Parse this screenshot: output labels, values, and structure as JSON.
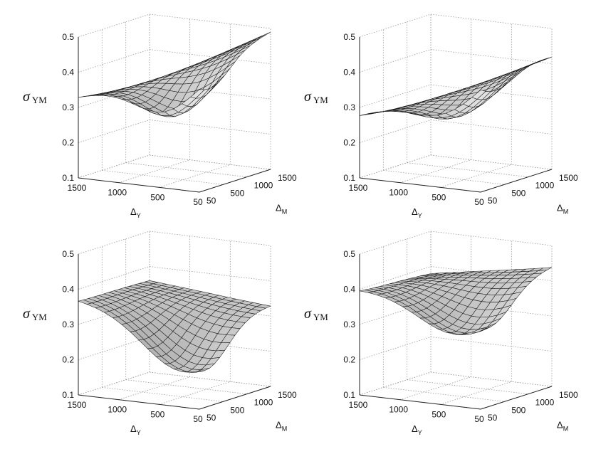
{
  "chart_data": [
    {
      "type": "surface",
      "title": "",
      "zlabel": "σ",
      "zlabel_sub": "YM",
      "xlabel": "Δ",
      "xlabel_sub": "Y",
      "ylabel": "Δ",
      "ylabel_sub": "M",
      "xticks": [
        "1500",
        "1000",
        "500",
        "50"
      ],
      "yticks": [
        "50",
        "500",
        "1000",
        "1500"
      ],
      "zticks": [
        "0.1",
        "0.2",
        "0.3",
        "0.4",
        "0.5"
      ],
      "zlim": [
        0.1,
        0.5
      ],
      "grid": true,
      "fill": "#c4c4c4",
      "edge": "#1a1a1a",
      "surface": {
        "corner_x1500_y50": 0.33,
        "corner_x1500_y1500": 0.3,
        "corner_x50_y50": 0.44,
        "corner_x50_y1500": 0.49,
        "dip_center": 0.17,
        "dip_x": 0.72,
        "dip_y": 0.18,
        "dip_width_x": 0.35,
        "dip_width_y": 0.35,
        "dip_depth": 0.12
      }
    },
    {
      "type": "surface",
      "title": "",
      "zlabel": "σ",
      "zlabel_sub": "YM",
      "xlabel": "Δ",
      "xlabel_sub": "Y",
      "ylabel": "Δ",
      "ylabel_sub": "M",
      "xticks": [
        "1500",
        "1000",
        "500",
        "50"
      ],
      "yticks": [
        "50",
        "500",
        "1000",
        "1500"
      ],
      "zticks": [
        "0.1",
        "0.2",
        "0.3",
        "0.4",
        "0.5"
      ],
      "zlim": [
        0.1,
        0.5
      ],
      "grid": true,
      "fill": "#c4c4c4",
      "edge": "#1a1a1a",
      "surface": {
        "corner_x1500_y50": 0.28,
        "corner_x1500_y1500": 0.25,
        "corner_x50_y50": 0.44,
        "corner_x50_y1500": 0.42,
        "dip_center": 0.14,
        "dip_x": 0.72,
        "dip_y": 0.18,
        "dip_width_x": 0.4,
        "dip_width_y": 0.4,
        "dip_depth": 0.1
      }
    },
    {
      "type": "surface",
      "title": "",
      "zlabel": "σ",
      "zlabel_sub": "YM",
      "xlabel": "Δ",
      "xlabel_sub": "Y",
      "ylabel": "Δ",
      "ylabel_sub": "M",
      "xticks": [
        "1500",
        "1000",
        "500",
        "50"
      ],
      "yticks": [
        "50",
        "500",
        "1000",
        "1500"
      ],
      "zticks": [
        "0.1",
        "0.2",
        "0.3",
        "0.4",
        "0.5"
      ],
      "zlim": [
        0.1,
        0.5
      ],
      "grid": true,
      "fill": "#c4c4c4",
      "edge": "#1a1a1a",
      "surface": {
        "corner_x1500_y50": 0.37,
        "corner_x1500_y1500": 0.36,
        "corner_x50_y50": 0.33,
        "corner_x50_y1500": 0.33,
        "dip_center": 0.11,
        "dip_x": 0.85,
        "dip_y": 0.08,
        "dip_width_x": 0.45,
        "dip_width_y": 0.45,
        "dip_depth": 0.14
      }
    },
    {
      "type": "surface",
      "title": "",
      "zlabel": "σ",
      "zlabel_sub": "YM",
      "xlabel": "Δ",
      "xlabel_sub": "Y",
      "ylabel": "Δ",
      "ylabel_sub": "M",
      "xticks": [
        "1500",
        "1000",
        "500",
        "50"
      ],
      "yticks": [
        "50",
        "500",
        "1000",
        "1500"
      ],
      "zticks": [
        "0.1",
        "0.2",
        "0.3",
        "0.4",
        "0.5"
      ],
      "zlim": [
        0.1,
        0.5
      ],
      "grid": true,
      "fill": "#c4c4c4",
      "edge": "#1a1a1a",
      "surface": {
        "corner_x1500_y50": 0.4,
        "corner_x1500_y1500": 0.38,
        "corner_x50_y50": 0.42,
        "corner_x50_y1500": 0.44,
        "dip_center": 0.14,
        "dip_x": 0.8,
        "dip_y": 0.12,
        "dip_width_x": 0.45,
        "dip_width_y": 0.45,
        "dip_depth": 0.12
      }
    }
  ]
}
